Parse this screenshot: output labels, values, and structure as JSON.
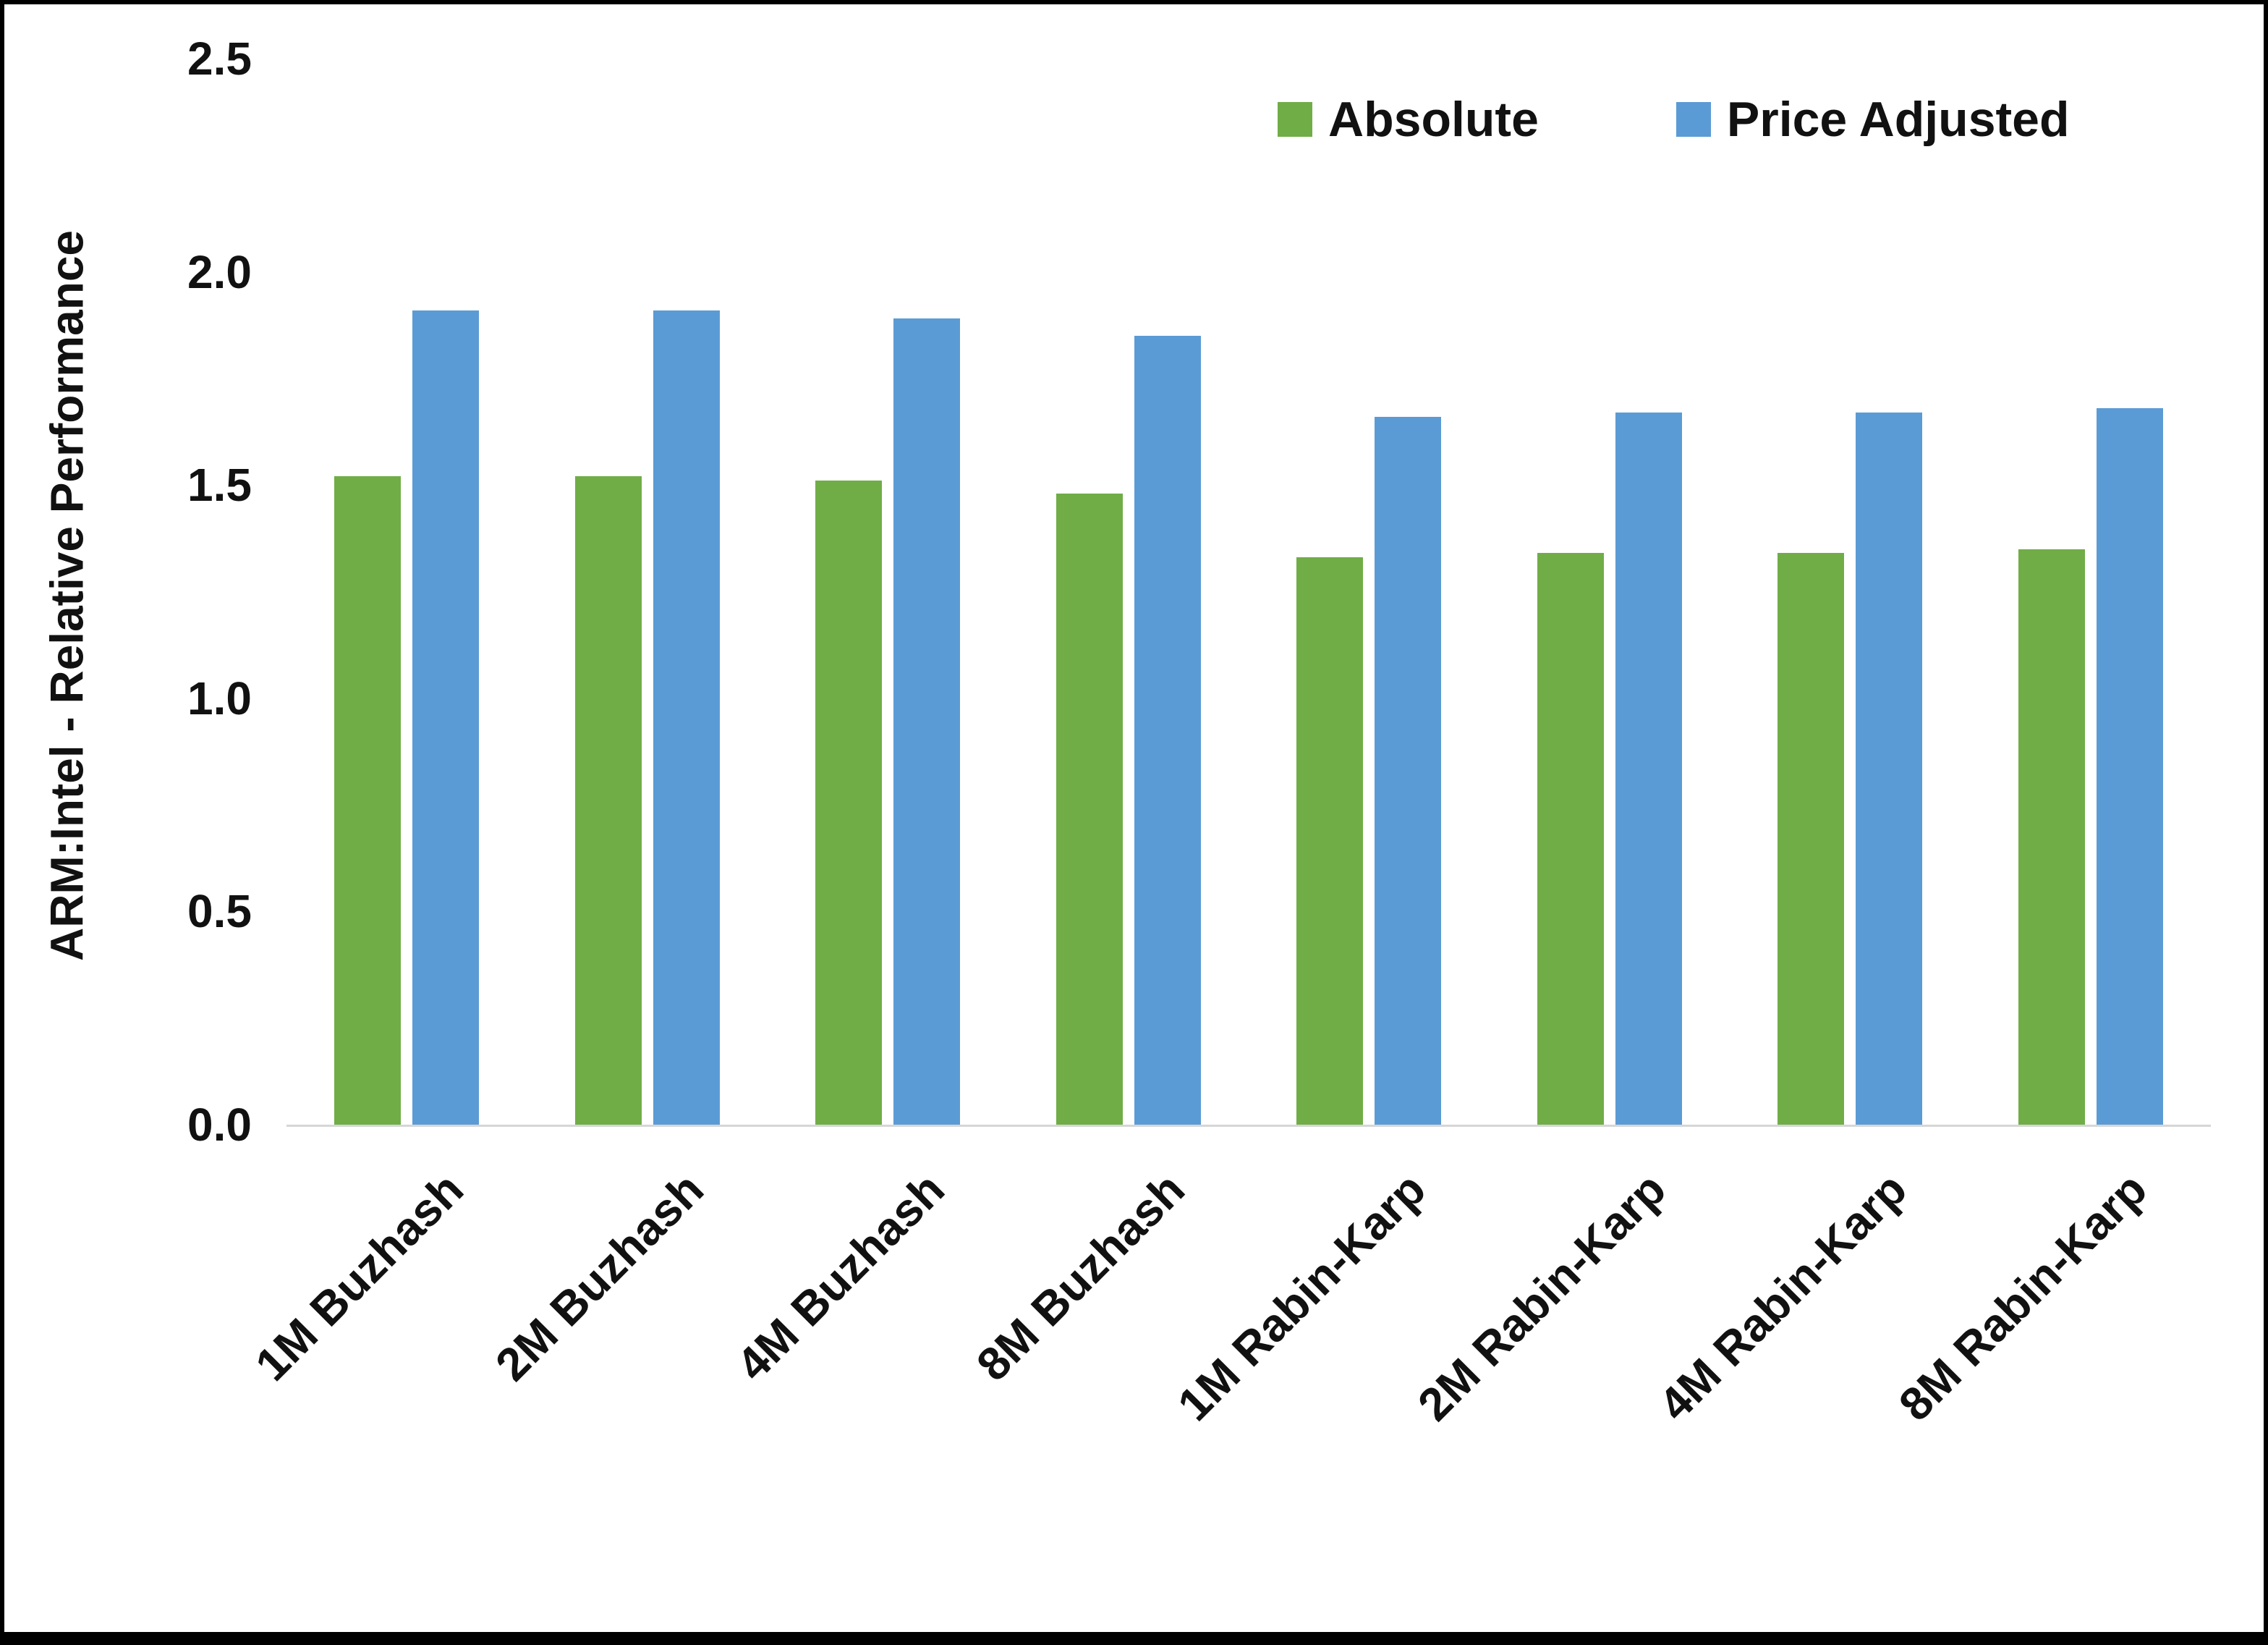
{
  "chart_data": {
    "type": "bar",
    "title": "",
    "xlabel": "",
    "ylabel": "ARM:Intel - Relative Performance",
    "ylim": [
      0,
      2.5
    ],
    "yticks": [
      "0.0",
      "0.5",
      "1.0",
      "1.5",
      "2.0",
      "2.5"
    ],
    "grid": false,
    "legend_position": "top-right",
    "categories": [
      "1M Buzhash",
      "2M Buzhash",
      "4M Buzhash",
      "8M Buzhash",
      "1M Rabin-Karp",
      "2M Rabin-Karp",
      "4M Rabin-Karp",
      "8M Rabin-Karp"
    ],
    "series": [
      {
        "name": "Absolute",
        "color": "#70AD47",
        "values": [
          1.52,
          1.52,
          1.51,
          1.48,
          1.33,
          1.34,
          1.34,
          1.35
        ]
      },
      {
        "name": "Price Adjusted",
        "color": "#5B9BD5",
        "values": [
          1.91,
          1.91,
          1.89,
          1.85,
          1.66,
          1.67,
          1.67,
          1.68
        ]
      }
    ]
  }
}
